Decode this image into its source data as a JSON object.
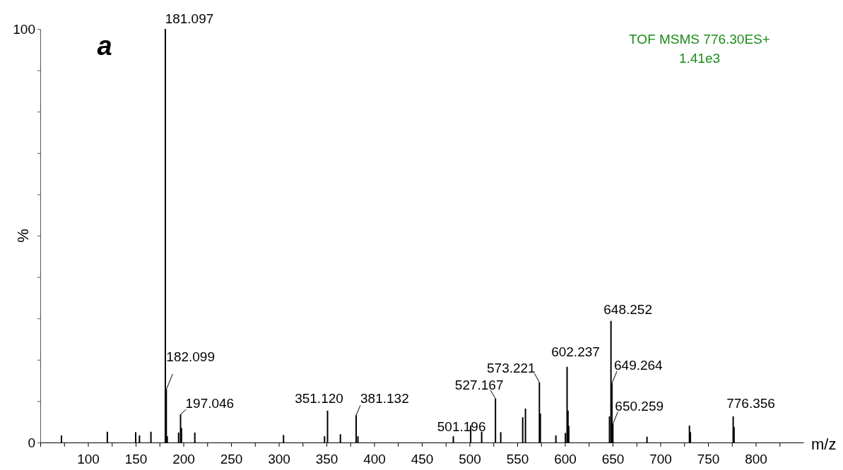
{
  "chart_data": {
    "type": "bar",
    "xlabel": "m/z",
    "ylabel": "%",
    "color": "#000000",
    "x": [
      72.2,
      120.3,
      150,
      154,
      166,
      181.097,
      182.099,
      183.1,
      195,
      197.046,
      198,
      212,
      305,
      348,
      351.12,
      364.6,
      381.132,
      383,
      483,
      501.196,
      512.7,
      527.167,
      532.7,
      555.7,
      558.6,
      573.221,
      574.2,
      590.5,
      600.5,
      602.237,
      603.2,
      604,
      646.7,
      648.252,
      649.264,
      650.259,
      686,
      730.5,
      731.5,
      776.356,
      777.3
    ],
    "values": [
      1.7,
      2.6,
      2.5,
      1.7,
      2.6,
      100,
      12.8,
      1.5,
      2.4,
      6.8,
      3.5,
      2.4,
      1.8,
      1.5,
      7.7,
      2,
      6.6,
      1.5,
      1.5,
      4.1,
      2.6,
      10.6,
      2.5,
      6.1,
      8.2,
      14.5,
      7,
      1.7,
      2.3,
      18.3,
      7.7,
      4,
      6.3,
      29.4,
      14.3,
      4.5,
      1.4,
      4.1,
      2.5,
      6.3,
      3.7
    ],
    "xlim": [
      50,
      850
    ],
    "xticks": [
      {
        "value": 50,
        "label": null
      },
      {
        "value": 75,
        "label": null
      },
      100,
      {
        "value": 125,
        "label": null
      },
      150,
      {
        "value": 175,
        "label": null
      },
      200,
      {
        "value": 225,
        "label": null
      },
      250,
      {
        "value": 275,
        "label": null
      },
      300,
      {
        "value": 325,
        "label": null
      },
      350,
      {
        "value": 375,
        "label": null
      },
      400,
      {
        "value": 425,
        "label": null
      },
      450,
      {
        "value": 475,
        "label": null
      },
      500,
      {
        "value": 525,
        "label": null
      },
      550,
      {
        "value": 575,
        "label": null
      },
      600,
      {
        "value": 625,
        "label": null
      },
      650,
      {
        "value": 675,
        "label": null
      },
      700,
      {
        "value": 725,
        "label": null
      },
      750,
      {
        "value": 775,
        "label": null
      },
      800,
      {
        "value": 825,
        "label": null
      }
    ],
    "ylim": [
      0,
      100
    ],
    "yticks": [
      0,
      {
        "value": 10,
        "label": null
      },
      {
        "value": 20,
        "label": null
      },
      {
        "value": 30,
        "label": null
      },
      {
        "value": 40,
        "label": null
      },
      {
        "value": 50,
        "label": null
      },
      {
        "value": 60,
        "label": null
      },
      {
        "value": 70,
        "label": null
      },
      {
        "value": 80,
        "label": null
      },
      {
        "value": 90,
        "label": null
      },
      100
    ],
    "grid": false,
    "annotations": [
      {
        "text": "181.097",
        "x": 181.097,
        "y": 100
      },
      {
        "text": "182.099",
        "x": 182.099,
        "y": 12.8
      },
      {
        "text": "197.046",
        "x": 197.046,
        "y": 6.8
      },
      {
        "text": "351.120",
        "x": 351.12,
        "y": 7.7
      },
      {
        "text": "381.132",
        "x": 381.132,
        "y": 6.6
      },
      {
        "text": "501.196",
        "x": 501.196,
        "y": 4.1
      },
      {
        "text": "527.167",
        "x": 527.167,
        "y": 10.6
      },
      {
        "text": "573.221",
        "x": 573.221,
        "y": 14.5
      },
      {
        "text": "602.237",
        "x": 602.237,
        "y": 18.3
      },
      {
        "text": "648.252",
        "x": 648.252,
        "y": 29.4
      },
      {
        "text": "649.264",
        "x": 649.264,
        "y": 14.3
      },
      {
        "text": "650.259",
        "x": 650.259,
        "y": 4.5
      },
      {
        "text": "776.356",
        "x": 776.356,
        "y": 6.3
      },
      "a",
      "TOF MSMS 776.30ES+",
      "1.41e3"
    ]
  }
}
